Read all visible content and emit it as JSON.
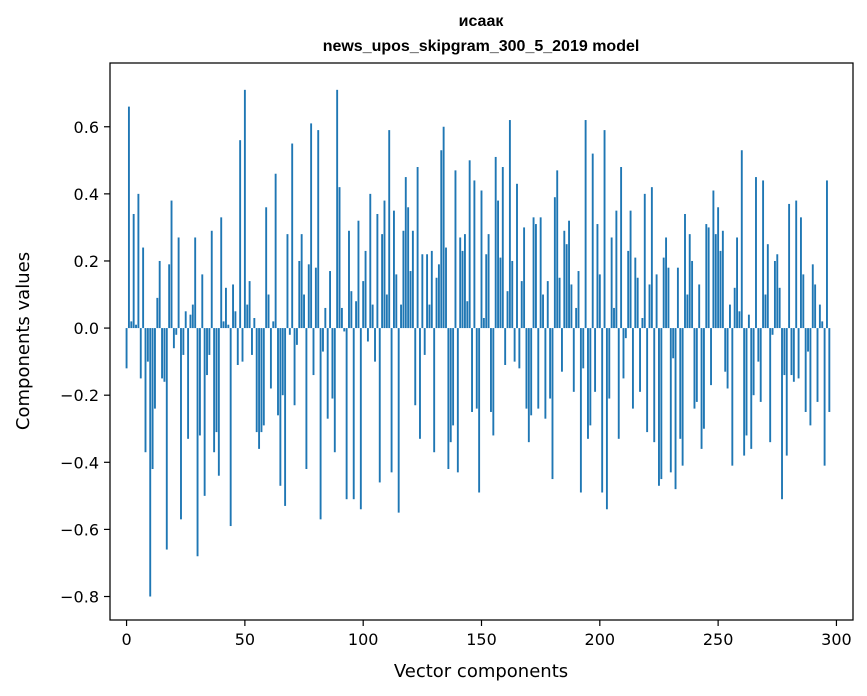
{
  "chart_data": {
    "type": "bar",
    "title": "исаак",
    "subtitle": "news_upos_skipgram_300_5_2019 model",
    "xlabel": "Vector components",
    "ylabel": "Components values",
    "xlim": [
      -7,
      307
    ],
    "ylim": [
      -0.87,
      0.79
    ],
    "xticks": [
      0,
      50,
      100,
      150,
      200,
      250,
      300
    ],
    "xtick_labels": [
      "0",
      "50",
      "100",
      "150",
      "200",
      "250",
      "300"
    ],
    "yticks": [
      -0.8,
      -0.6,
      -0.4,
      -0.2,
      0.0,
      0.2,
      0.4,
      0.6
    ],
    "ytick_labels": [
      "−0.8",
      "−0.6",
      "−0.4",
      "−0.2",
      "0.0",
      "0.2",
      "0.4",
      "0.6"
    ],
    "grid": false,
    "bar_color": "#1f77b4",
    "x_start": 0,
    "values": [
      -0.12,
      0.66,
      0.02,
      0.34,
      0.01,
      0.4,
      -0.15,
      0.24,
      -0.37,
      -0.1,
      -0.8,
      -0.42,
      -0.24,
      0.09,
      0.2,
      -0.15,
      -0.16,
      -0.66,
      0.19,
      0.38,
      -0.06,
      -0.02,
      0.27,
      -0.57,
      -0.08,
      0.05,
      -0.33,
      0.04,
      0.07,
      0.27,
      -0.68,
      -0.32,
      0.16,
      -0.5,
      -0.14,
      -0.08,
      0.29,
      -0.37,
      -0.31,
      -0.44,
      0.33,
      0.02,
      0.12,
      0.01,
      -0.59,
      0.13,
      0.05,
      -0.11,
      0.56,
      -0.1,
      0.71,
      0.07,
      0.14,
      -0.08,
      0.03,
      -0.31,
      -0.36,
      -0.31,
      -0.29,
      0.36,
      0.1,
      -0.18,
      0.02,
      0.46,
      -0.26,
      -0.47,
      -0.2,
      -0.53,
      0.28,
      -0.02,
      0.55,
      -0.23,
      -0.05,
      0.2,
      0.28,
      0.1,
      -0.42,
      0.19,
      0.61,
      -0.14,
      0.18,
      0.59,
      -0.57,
      -0.07,
      0.06,
      -0.27,
      0.17,
      -0.21,
      -0.37,
      0.71,
      0.42,
      0.06,
      -0.01,
      -0.51,
      0.29,
      0.11,
      -0.51,
      0.08,
      0.32,
      -0.54,
      0.14,
      0.23,
      -0.04,
      0.4,
      0.07,
      -0.1,
      0.34,
      -0.46,
      0.28,
      0.38,
      0.1,
      0.59,
      -0.43,
      0.35,
      0.16,
      -0.55,
      0.07,
      0.29,
      0.45,
      0.36,
      0.17,
      0.29,
      -0.23,
      0.48,
      -0.33,
      0.22,
      -0.08,
      0.22,
      0.07,
      0.23,
      -0.37,
      0.15,
      0.19,
      0.53,
      0.6,
      0.24,
      -0.42,
      -0.34,
      -0.29,
      0.47,
      -0.43,
      0.27,
      0.23,
      0.28,
      0.08,
      0.5,
      -0.25,
      0.44,
      -0.24,
      -0.49,
      0.41,
      0.03,
      0.22,
      0.28,
      -0.25,
      -0.32,
      0.51,
      0.38,
      0.21,
      0.48,
      -0.11,
      0.11,
      0.62,
      0.2,
      -0.1,
      0.43,
      -0.12,
      0.14,
      0.3,
      -0.24,
      -0.34,
      -0.26,
      0.33,
      0.31,
      -0.24,
      0.33,
      0.1,
      -0.27,
      0.14,
      -0.21,
      -0.45,
      0.39,
      0.47,
      0.15,
      -0.13,
      0.29,
      0.25,
      0.32,
      0.13,
      -0.19,
      0.06,
      0.17,
      -0.49,
      -0.12,
      0.62,
      -0.33,
      -0.29,
      0.52,
      -0.19,
      0.31,
      0.16,
      -0.49,
      0.59,
      -0.54,
      -0.21,
      0.27,
      0.06,
      0.35,
      -0.33,
      0.48,
      -0.15,
      -0.03,
      0.23,
      0.35,
      -0.24,
      0.21,
      0.15,
      -0.19,
      0.03,
      0.4,
      -0.31,
      0.13,
      0.42,
      -0.34,
      0.16,
      -0.47,
      -0.45,
      0.21,
      0.27,
      0.18,
      -0.43,
      -0.09,
      -0.48,
      0.18,
      -0.33,
      -0.41,
      0.34,
      0.1,
      0.28,
      0.2,
      -0.24,
      -0.22,
      0.13,
      -0.36,
      -0.3,
      0.31,
      0.3,
      -0.17,
      0.41,
      0.28,
      0.36,
      0.23,
      0.29,
      -0.13,
      -0.18,
      0.07,
      -0.41,
      0.12,
      0.27,
      0.05,
      0.53,
      -0.38,
      -0.32,
      0.04,
      -0.36,
      -0.2,
      0.45,
      -0.1,
      -0.22,
      0.44,
      0.1,
      0.25,
      -0.34,
      -0.02,
      0.2,
      0.22,
      0.12,
      -0.51,
      -0.14,
      -0.38,
      0.37,
      -0.14,
      -0.16,
      0.38,
      -0.15,
      0.33,
      0.16,
      -0.25,
      -0.07,
      -0.29,
      0.19,
      0.13,
      -0.22,
      0.07,
      0.02,
      -0.41,
      0.44,
      -0.25,
      0.0
    ]
  }
}
